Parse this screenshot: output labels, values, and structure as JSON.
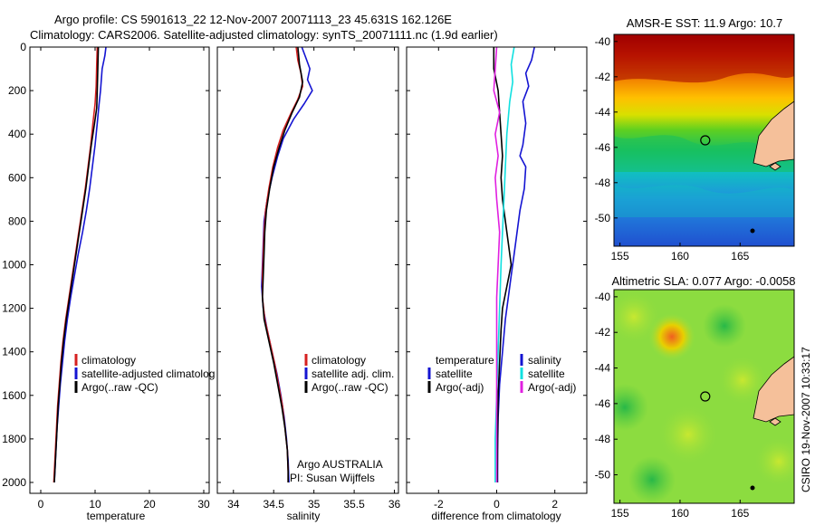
{
  "header": {
    "line1": "Argo profile: CS 5901613_22 12-Nov-2007 20071113_23 45.631S 162.126E",
    "line2": "Climatology: CARS2006. Satellite-adjusted climatology: synTS_20071111.nc (1.9d earlier)"
  },
  "side_label": "CSIRO 19-Nov-2007 10:33:17",
  "chart_data": [
    {
      "type": "line",
      "panel": "temperature",
      "xlabel": "temperature",
      "ylabel": "",
      "xlim": [
        -2,
        31
      ],
      "ylim": [
        2050,
        0
      ],
      "x_ticks": [
        0,
        10,
        20,
        30
      ],
      "y_ticks": [
        0,
        200,
        400,
        600,
        800,
        1000,
        1200,
        1400,
        1600,
        1800,
        2000
      ],
      "legend": {
        "position": "lower-right",
        "entries": [
          {
            "label": "climatology",
            "color": "#d62020"
          },
          {
            "label": "satellite-adjusted climatolog",
            "color": "#1414d2"
          },
          {
            "label": "Argo(..raw -QC)",
            "color": "#000000"
          }
        ]
      },
      "series": [
        {
          "name": "satellite-adjusted climatolog",
          "color": "#1414d2",
          "points": [
            [
              12.0,
              0
            ],
            [
              11.8,
              40
            ],
            [
              11.3,
              100
            ],
            [
              11.0,
              200
            ],
            [
              10.7,
              270
            ],
            [
              10.4,
              350
            ],
            [
              10.0,
              450
            ],
            [
              9.5,
              550
            ],
            [
              9.0,
              650
            ],
            [
              8.4,
              750
            ],
            [
              7.7,
              850
            ],
            [
              6.9,
              950
            ],
            [
              6.2,
              1050
            ],
            [
              5.5,
              1150
            ],
            [
              4.9,
              1250
            ],
            [
              4.4,
              1350
            ],
            [
              4.0,
              1450
            ],
            [
              3.6,
              1550
            ],
            [
              3.3,
              1650
            ],
            [
              3.0,
              1750
            ],
            [
              2.8,
              1850
            ],
            [
              2.6,
              1950
            ],
            [
              2.5,
              2000
            ]
          ]
        },
        {
          "name": "climatology",
          "color": "#d62020",
          "points": [
            [
              10.4,
              0
            ],
            [
              10.3,
              80
            ],
            [
              10.2,
              180
            ],
            [
              10.0,
              260
            ],
            [
              9.6,
              350
            ],
            [
              9.2,
              450
            ],
            [
              8.7,
              550
            ],
            [
              8.2,
              650
            ],
            [
              7.6,
              750
            ],
            [
              7.0,
              850
            ],
            [
              6.4,
              950
            ],
            [
              5.8,
              1050
            ],
            [
              5.2,
              1150
            ],
            [
              4.6,
              1250
            ],
            [
              4.1,
              1350
            ],
            [
              3.7,
              1450
            ],
            [
              3.4,
              1550
            ],
            [
              3.1,
              1650
            ],
            [
              2.9,
              1750
            ],
            [
              2.7,
              1850
            ],
            [
              2.5,
              1950
            ],
            [
              2.4,
              2000
            ]
          ]
        },
        {
          "name": "Argo(..raw -QC)",
          "color": "#000000",
          "points": [
            [
              10.6,
              0
            ],
            [
              10.5,
              100
            ],
            [
              10.4,
              200
            ],
            [
              10.3,
              280
            ],
            [
              9.9,
              350
            ],
            [
              9.3,
              450
            ],
            [
              8.8,
              550
            ],
            [
              8.3,
              650
            ],
            [
              7.7,
              750
            ],
            [
              7.1,
              850
            ],
            [
              6.5,
              950
            ],
            [
              5.9,
              1050
            ],
            [
              5.3,
              1150
            ],
            [
              4.7,
              1250
            ],
            [
              4.2,
              1350
            ],
            [
              3.8,
              1450
            ],
            [
              3.5,
              1550
            ],
            [
              3.2,
              1650
            ],
            [
              3.0,
              1750
            ],
            [
              2.8,
              1850
            ],
            [
              2.6,
              1950
            ],
            [
              2.5,
              2000
            ]
          ]
        }
      ]
    },
    {
      "type": "line",
      "panel": "salinity",
      "xlabel": "salinity",
      "ylabel": "",
      "xlim": [
        33.8,
        36.05
      ],
      "ylim": [
        2050,
        0
      ],
      "x_ticks": [
        34,
        34.5,
        35,
        35.5,
        36
      ],
      "legend": {
        "position": "lower-right",
        "entries": [
          {
            "label": "climatology",
            "color": "#d62020"
          },
          {
            "label": "satellite adj. clim.",
            "color": "#1414d2"
          },
          {
            "label": "Argo(..raw -QC)",
            "color": "#000000"
          }
        ]
      },
      "annotation": [
        "Argo AUSTRALIA",
        "PI: Susan Wijffels"
      ],
      "series": [
        {
          "name": "satellite adj. clim.",
          "color": "#1414d2",
          "points": [
            [
              34.85,
              0
            ],
            [
              34.9,
              50
            ],
            [
              34.95,
              100
            ],
            [
              34.92,
              150
            ],
            [
              34.98,
              200
            ],
            [
              34.88,
              260
            ],
            [
              34.75,
              330
            ],
            [
              34.62,
              420
            ],
            [
              34.55,
              500
            ],
            [
              34.48,
              600
            ],
            [
              34.42,
              700
            ],
            [
              34.38,
              800
            ],
            [
              34.37,
              900
            ],
            [
              34.36,
              1000
            ],
            [
              34.35,
              1100
            ],
            [
              34.37,
              1200
            ],
            [
              34.42,
              1300
            ],
            [
              34.48,
              1400
            ],
            [
              34.54,
              1500
            ],
            [
              34.59,
              1600
            ],
            [
              34.63,
              1700
            ],
            [
              34.66,
              1800
            ],
            [
              34.68,
              1900
            ],
            [
              34.69,
              2000
            ]
          ]
        },
        {
          "name": "climatology",
          "color": "#d62020",
          "points": [
            [
              34.78,
              0
            ],
            [
              34.8,
              60
            ],
            [
              34.84,
              120
            ],
            [
              34.86,
              180
            ],
            [
              34.8,
              240
            ],
            [
              34.72,
              300
            ],
            [
              34.62,
              380
            ],
            [
              34.55,
              460
            ],
            [
              34.49,
              550
            ],
            [
              34.44,
              650
            ],
            [
              34.4,
              750
            ],
            [
              34.38,
              850
            ],
            [
              34.37,
              950
            ],
            [
              34.36,
              1050
            ],
            [
              34.36,
              1150
            ],
            [
              34.39,
              1250
            ],
            [
              34.45,
              1350
            ],
            [
              34.51,
              1450
            ],
            [
              34.56,
              1550
            ],
            [
              34.61,
              1650
            ],
            [
              34.64,
              1750
            ],
            [
              34.67,
              1850
            ],
            [
              34.68,
              1950
            ],
            [
              34.68,
              2000
            ]
          ]
        },
        {
          "name": "Argo(..raw -QC)",
          "color": "#000000",
          "points": [
            [
              34.8,
              0
            ],
            [
              34.82,
              80
            ],
            [
              34.86,
              160
            ],
            [
              34.82,
              230
            ],
            [
              34.73,
              300
            ],
            [
              34.64,
              380
            ],
            [
              34.57,
              460
            ],
            [
              34.5,
              550
            ],
            [
              34.45,
              650
            ],
            [
              34.41,
              750
            ],
            [
              34.39,
              850
            ],
            [
              34.38,
              950
            ],
            [
              34.37,
              1050
            ],
            [
              34.36,
              1150
            ],
            [
              34.38,
              1250
            ],
            [
              34.44,
              1350
            ],
            [
              34.5,
              1450
            ],
            [
              34.55,
              1550
            ],
            [
              34.6,
              1650
            ],
            [
              34.64,
              1750
            ],
            [
              34.67,
              1850
            ],
            [
              34.68,
              1950
            ],
            [
              34.68,
              2000
            ]
          ]
        }
      ]
    },
    {
      "type": "line",
      "panel": "difference",
      "xlabel": "difference from climatology",
      "ylabel": "",
      "xlim": [
        -3.1,
        3.1
      ],
      "ylim": [
        2050,
        0
      ],
      "x_ticks": [
        -2,
        0,
        2
      ],
      "legend": {
        "position": "lower-right",
        "headers": [
          "temperature",
          "salinity"
        ],
        "entries": [
          {
            "label": "satellite",
            "color": "#1414d2",
            "column": "temperature"
          },
          {
            "label": "Argo(-adj)",
            "color": "#000000",
            "column": "temperature"
          },
          {
            "label": "satellite",
            "color": "#10e0e0",
            "column": "salinity"
          },
          {
            "label": "Argo(-adj)",
            "color": "#e020e0",
            "column": "salinity"
          }
        ]
      },
      "series": [
        {
          "name": "satellite",
          "color": "#1414d2",
          "points": [
            [
              1.3,
              0
            ],
            [
              1.2,
              60
            ],
            [
              1.0,
              120
            ],
            [
              1.1,
              180
            ],
            [
              0.9,
              250
            ],
            [
              1.0,
              350
            ],
            [
              0.9,
              450
            ],
            [
              0.8,
              500
            ],
            [
              1.0,
              550
            ],
            [
              0.95,
              650
            ],
            [
              0.8,
              750
            ],
            [
              0.7,
              850
            ],
            [
              0.6,
              950
            ],
            [
              0.5,
              1050
            ],
            [
              0.4,
              1150
            ],
            [
              0.3,
              1250
            ],
            [
              0.2,
              1400
            ],
            [
              0.1,
              1550
            ],
            [
              0.05,
              1700
            ],
            [
              0.03,
              1850
            ],
            [
              0.03,
              2000
            ]
          ]
        },
        {
          "name": "Argo(-adj)",
          "color": "#000000",
          "points": [
            [
              -0.1,
              0
            ],
            [
              -0.1,
              100
            ],
            [
              0.05,
              200
            ],
            [
              0.1,
              300
            ],
            [
              0.15,
              400
            ],
            [
              0.2,
              500
            ],
            [
              0.15,
              600
            ],
            [
              0.2,
              700
            ],
            [
              0.3,
              800
            ],
            [
              0.4,
              900
            ],
            [
              0.5,
              1000
            ],
            [
              0.35,
              1100
            ],
            [
              0.2,
              1200
            ],
            [
              0.15,
              1300
            ],
            [
              0.1,
              1450
            ],
            [
              0.05,
              1600
            ],
            [
              0.03,
              1800
            ],
            [
              0.02,
              2000
            ]
          ]
        },
        {
          "name": "satellite",
          "color": "#10e0e0",
          "points": [
            [
              0.6,
              0
            ],
            [
              0.5,
              80
            ],
            [
              0.55,
              160
            ],
            [
              0.45,
              250
            ],
            [
              0.35,
              400
            ],
            [
              0.3,
              550
            ],
            [
              0.25,
              700
            ],
            [
              0.2,
              850
            ],
            [
              0.15,
              1000
            ],
            [
              0.1,
              1200
            ],
            [
              0.05,
              1400
            ],
            [
              0.0,
              1600
            ],
            [
              -0.05,
              1800
            ],
            [
              -0.05,
              2000
            ]
          ]
        },
        {
          "name": "Argo(-adj)",
          "color": "#e020e0",
          "points": [
            [
              0.0,
              0
            ],
            [
              -0.05,
              100
            ],
            [
              -0.1,
              200
            ],
            [
              0.1,
              300
            ],
            [
              -0.05,
              400
            ],
            [
              0.05,
              500
            ],
            [
              -0.05,
              600
            ],
            [
              0.0,
              700
            ],
            [
              0.1,
              850
            ],
            [
              0.05,
              1000
            ],
            [
              0.0,
              1150
            ],
            [
              0.0,
              1300
            ],
            [
              0.0,
              1500
            ],
            [
              0.0,
              1700
            ],
            [
              0.0,
              1900
            ],
            [
              0.0,
              2000
            ]
          ]
        }
      ]
    },
    {
      "type": "heatmap",
      "panel": "sst-map",
      "title": "AMSR-E SST: 11.9 Argo: 10.7",
      "xlim": [
        154.5,
        169.5
      ],
      "ylim": [
        -51.6,
        -39.6
      ],
      "x_ticks": [
        155,
        160,
        165
      ],
      "y_ticks": [
        -40,
        -42,
        -44,
        -46,
        -48,
        -50
      ],
      "marker": {
        "lon": 162.1,
        "lat": -45.6
      }
    },
    {
      "type": "heatmap",
      "panel": "sla-map",
      "title": "Altimetric SLA: 0.077 Argo: -0.0058",
      "xlim": [
        154.5,
        169.5
      ],
      "ylim": [
        -51.6,
        -39.6
      ],
      "x_ticks": [
        155,
        160,
        165
      ],
      "y_ticks": [
        -40,
        -42,
        -44,
        -46,
        -48,
        -50
      ],
      "marker": {
        "lon": 162.1,
        "lat": -45.6
      }
    }
  ]
}
